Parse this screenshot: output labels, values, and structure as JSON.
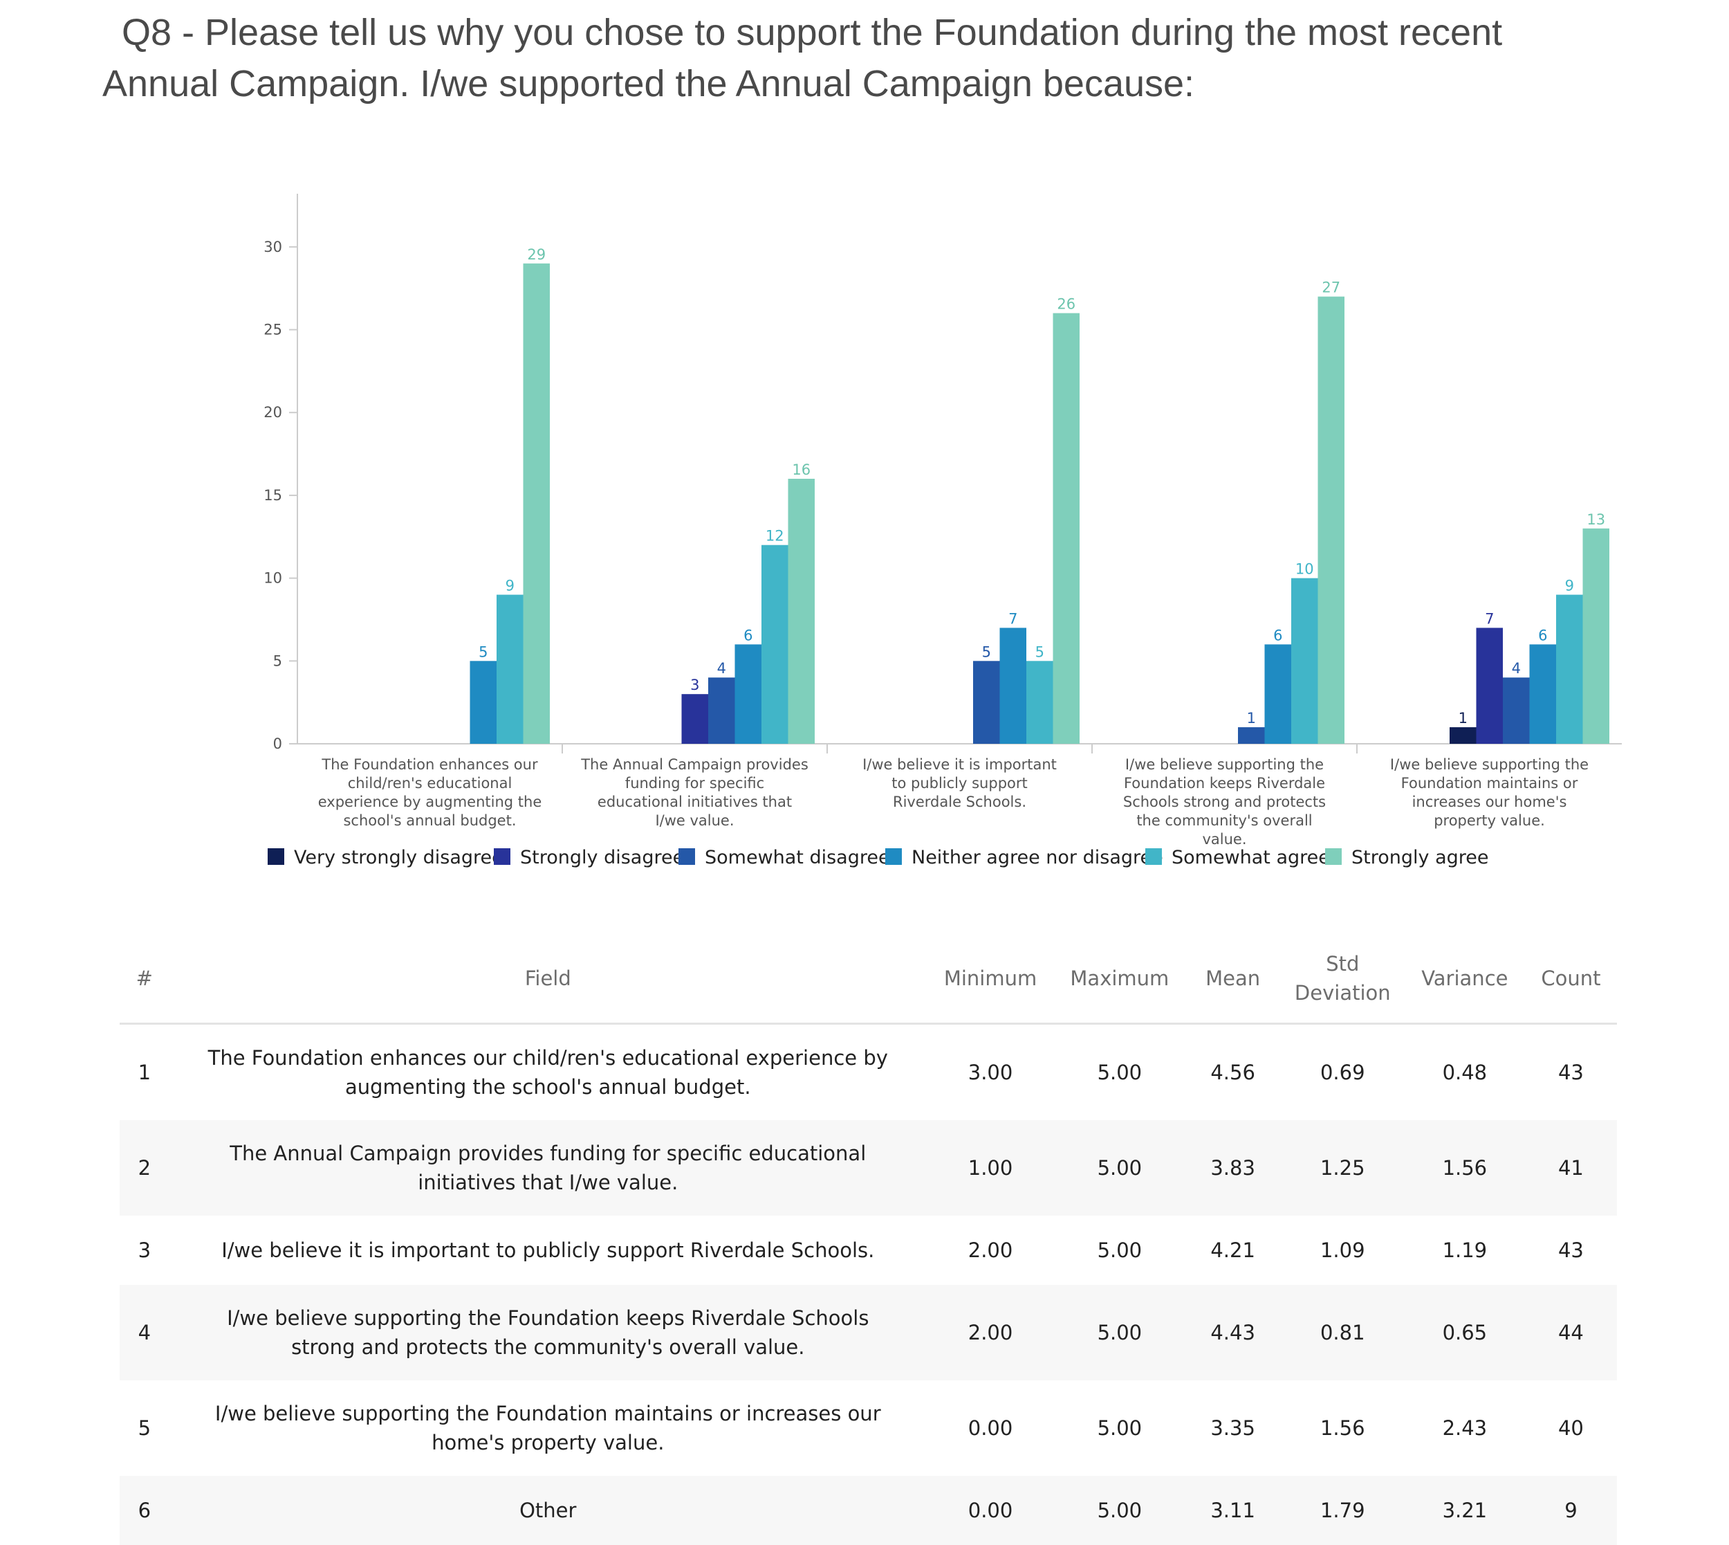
{
  "title": {
    "line1": "Q8 - Please tell us why you chose to support the Foundation during the most recent",
    "line2": "Annual Campaign. I/we supported the Annual Campaign because:"
  },
  "chart_data": {
    "type": "bar",
    "title": "",
    "xlabel": "",
    "ylabel": "",
    "ylim": [
      0,
      33
    ],
    "yticks": [
      0,
      5,
      10,
      15,
      20,
      25,
      30
    ],
    "legend_position": "bottom",
    "categories": [
      [
        "The Foundation enhances our",
        "child/ren's educational",
        "experience by augmenting the",
        "school's annual budget."
      ],
      [
        "The Annual Campaign provides",
        "funding for specific",
        "educational initiatives that",
        "I/we value."
      ],
      [
        "I/we believe it is important",
        "to publicly support",
        "Riverdale Schools."
      ],
      [
        "I/we believe supporting the",
        "Foundation keeps Riverdale",
        "Schools strong and protects",
        "the community's overall",
        "value."
      ],
      [
        "I/we believe supporting the",
        "Foundation maintains or",
        "increases our home's",
        "property value."
      ]
    ],
    "series": [
      {
        "name": "Very strongly disagree",
        "color": "#0f1f55",
        "values": [
          0,
          0,
          0,
          0,
          1
        ]
      },
      {
        "name": "Strongly disagree",
        "color": "#28339a",
        "values": [
          0,
          3,
          0,
          0,
          7
        ]
      },
      {
        "name": "Somewhat disagree",
        "color": "#2458a8",
        "values": [
          0,
          4,
          5,
          1,
          4
        ]
      },
      {
        "name": "Neither agree nor disagree",
        "color": "#1f8bc2",
        "values": [
          5,
          6,
          7,
          6,
          6
        ]
      },
      {
        "name": "Somewhat agree",
        "color": "#41b5c8",
        "values": [
          9,
          12,
          5,
          10,
          9
        ]
      },
      {
        "name": "Strongly agree",
        "color": "#7fcfbb",
        "values": [
          29,
          16,
          26,
          27,
          13
        ]
      }
    ]
  },
  "table": {
    "headers": {
      "num": "#",
      "field": "Field",
      "min": "Minimum",
      "max": "Maximum",
      "mean": "Mean",
      "std1": "Std",
      "std2": "Deviation",
      "variance": "Variance",
      "count": "Count"
    },
    "rows": [
      {
        "num": "1",
        "field": "The Foundation enhances our child/ren's educational experience by augmenting the school's annual budget.",
        "min": "3.00",
        "max": "5.00",
        "mean": "4.56",
        "std": "0.69",
        "variance": "0.48",
        "count": "43"
      },
      {
        "num": "2",
        "field": "The Annual Campaign provides funding for specific educational initiatives that I/we value.",
        "min": "1.00",
        "max": "5.00",
        "mean": "3.83",
        "std": "1.25",
        "variance": "1.56",
        "count": "41"
      },
      {
        "num": "3",
        "field": "I/we believe it is important to publicly support Riverdale Schools.",
        "min": "2.00",
        "max": "5.00",
        "mean": "4.21",
        "std": "1.09",
        "variance": "1.19",
        "count": "43"
      },
      {
        "num": "4",
        "field": "I/we believe supporting the Foundation keeps Riverdale Schools strong and protects the community's overall value.",
        "min": "2.00",
        "max": "5.00",
        "mean": "4.43",
        "std": "0.81",
        "variance": "0.65",
        "count": "44"
      },
      {
        "num": "5",
        "field": "I/we believe supporting the Foundation maintains or increases our home's property value.",
        "min": "0.00",
        "max": "5.00",
        "mean": "3.35",
        "std": "1.56",
        "variance": "2.43",
        "count": "40"
      },
      {
        "num": "6",
        "field": "Other",
        "min": "0.00",
        "max": "5.00",
        "mean": "3.11",
        "std": "1.79",
        "variance": "3.21",
        "count": "9"
      }
    ]
  }
}
